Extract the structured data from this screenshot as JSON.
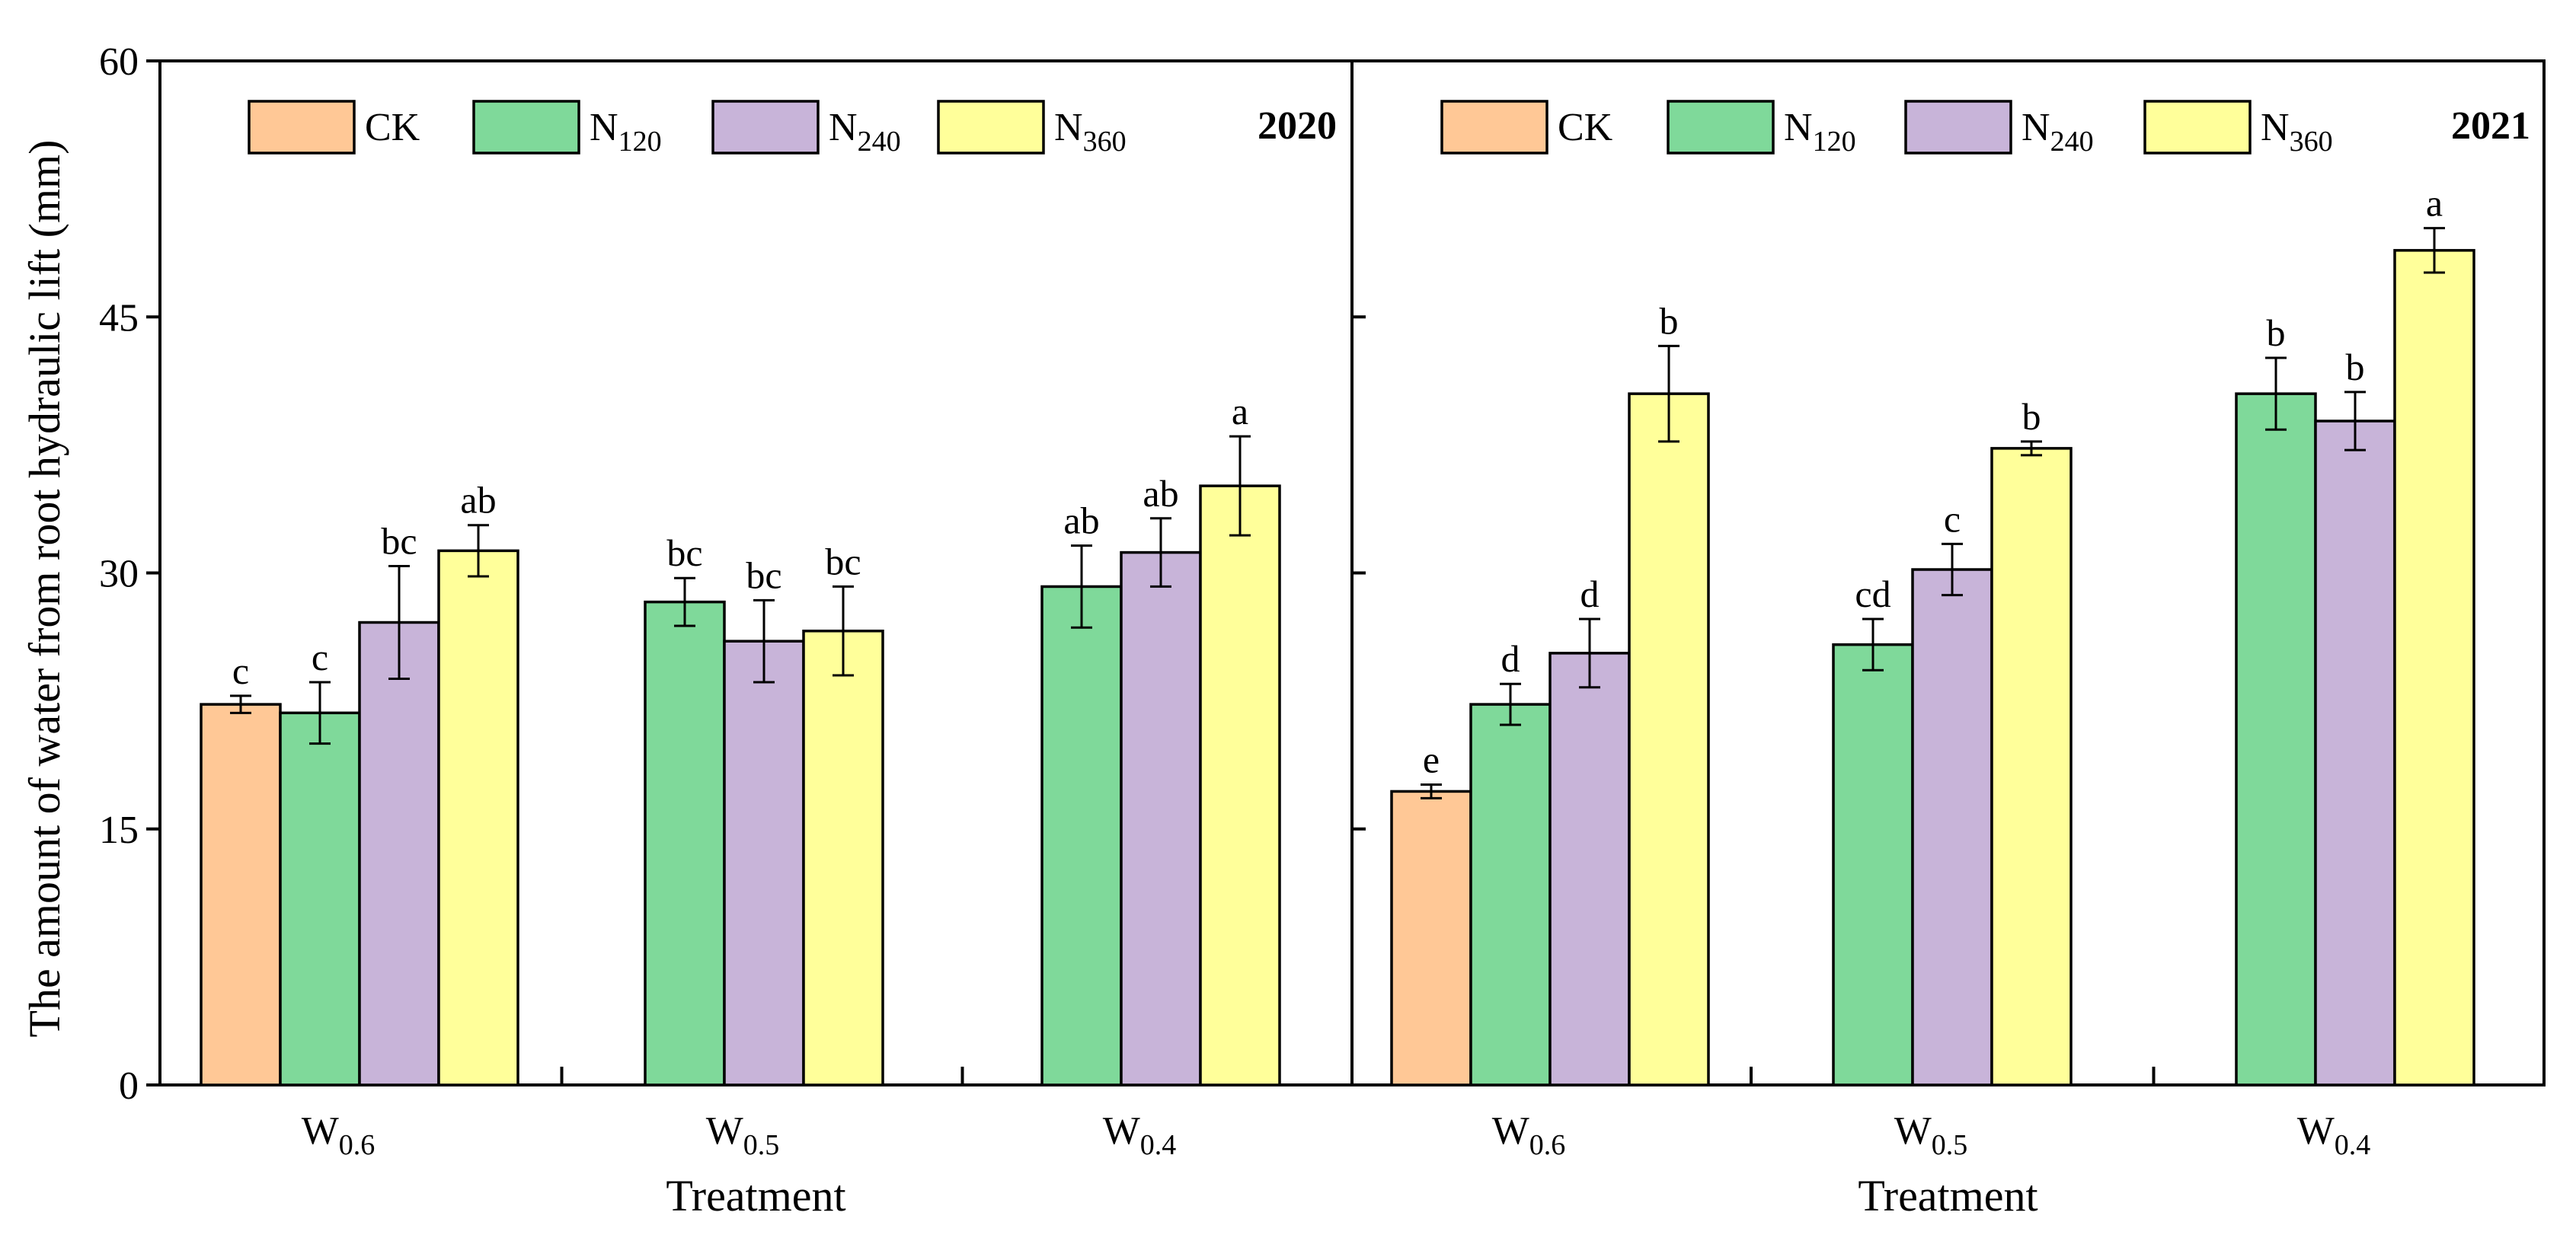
{
  "chart_data": {
    "type": "bar",
    "ylabel": "The amount of water from root hydraulic lift (mm)",
    "ylim": [
      0,
      60
    ],
    "yticks": [
      "0",
      "15",
      "30",
      "45",
      "60"
    ],
    "colors": {
      "CK": "#FFC896",
      "N120": "#7FD99A",
      "N240": "#C8B4D9",
      "N360": "#FFFF9A"
    },
    "legend": [
      {
        "key": "CK",
        "base": "CK",
        "sub": ""
      },
      {
        "key": "N120",
        "base": "N",
        "sub": "120"
      },
      {
        "key": "N240",
        "base": "N",
        "sub": "240"
      },
      {
        "key": "N360",
        "base": "N",
        "sub": "360"
      }
    ],
    "categories": [
      {
        "base": "W",
        "sub": "0.6"
      },
      {
        "base": "W",
        "sub": "0.5"
      },
      {
        "base": "W",
        "sub": "0.4"
      }
    ],
    "panels": [
      {
        "year": "2020",
        "xlabel": "Treatment",
        "groups": [
          {
            "bars": [
              {
                "series": "CK",
                "value": 22.3,
                "err": 0.5,
                "letter": "c"
              },
              {
                "series": "N120",
                "value": 21.8,
                "err": 1.8,
                "letter": "c"
              },
              {
                "series": "N240",
                "value": 27.1,
                "err": 3.3,
                "letter": "bc"
              },
              {
                "series": "N360",
                "value": 31.3,
                "err": 1.5,
                "letter": "ab"
              }
            ]
          },
          {
            "bars": [
              {
                "series": "N120",
                "value": 28.3,
                "err": 1.4,
                "letter": "bc"
              },
              {
                "series": "N240",
                "value": 26.0,
                "err": 2.4,
                "letter": "bc"
              },
              {
                "series": "N360",
                "value": 26.6,
                "err": 2.6,
                "letter": "bc"
              }
            ]
          },
          {
            "bars": [
              {
                "series": "N120",
                "value": 29.2,
                "err": 2.4,
                "letter": "ab"
              },
              {
                "series": "N240",
                "value": 31.2,
                "err": 2.0,
                "letter": "ab"
              },
              {
                "series": "N360",
                "value": 35.1,
                "err": 2.9,
                "letter": "a"
              }
            ]
          }
        ]
      },
      {
        "year": "2021",
        "xlabel": "Treatment",
        "groups": [
          {
            "bars": [
              {
                "series": "CK",
                "value": 17.2,
                "err": 0.4,
                "letter": "e"
              },
              {
                "series": "N120",
                "value": 22.3,
                "err": 1.2,
                "letter": "d"
              },
              {
                "series": "N240",
                "value": 25.3,
                "err": 2.0,
                "letter": "d"
              },
              {
                "series": "N360",
                "value": 40.5,
                "err": 2.8,
                "letter": "b"
              }
            ]
          },
          {
            "bars": [
              {
                "series": "N120",
                "value": 25.8,
                "err": 1.5,
                "letter": "cd"
              },
              {
                "series": "N240",
                "value": 30.2,
                "err": 1.5,
                "letter": "c"
              },
              {
                "series": "N360",
                "value": 37.3,
                "err": 0.4,
                "letter": "b"
              }
            ]
          },
          {
            "bars": [
              {
                "series": "N120",
                "value": 40.5,
                "err": 2.1,
                "letter": "b"
              },
              {
                "series": "N240",
                "value": 38.9,
                "err": 1.7,
                "letter": "b"
              },
              {
                "series": "N360",
                "value": 48.9,
                "err": 1.3,
                "letter": "a"
              }
            ]
          }
        ]
      }
    ]
  }
}
